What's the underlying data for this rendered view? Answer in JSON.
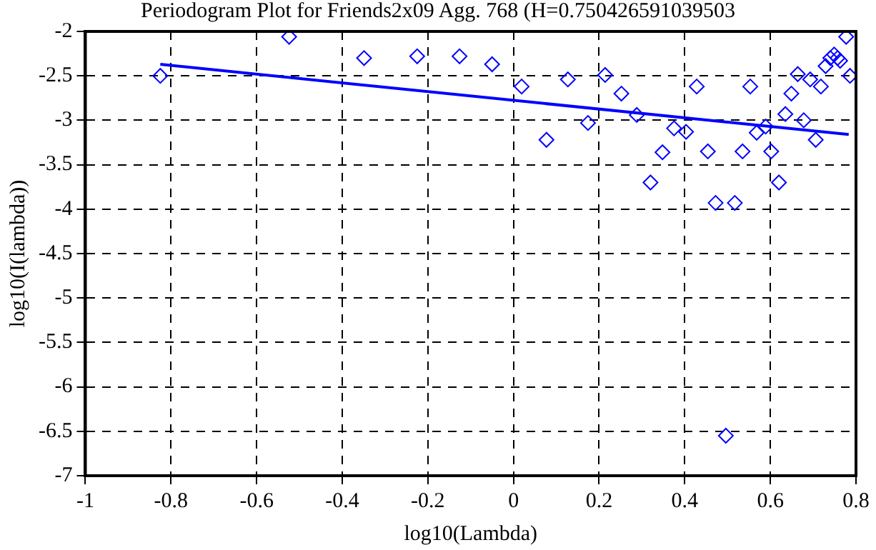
{
  "chart_data": {
    "type": "scatter",
    "title": "Periodogram Plot for Friends2x09 Agg. 768 (H=0.750426591039503",
    "xlabel": "log10(Lambda)",
    "ylabel": "log10(I(lambda))",
    "xlim": [
      -1,
      0.8
    ],
    "xticks": [
      -1,
      -0.8,
      -0.6,
      -0.4,
      -0.2,
      0,
      0.2,
      0.4,
      0.6,
      0.8
    ],
    "ylim": [
      -7,
      -2
    ],
    "yticks": [
      -7,
      -6.5,
      -6,
      -5.5,
      -5,
      -4.5,
      -4,
      -3.5,
      -3,
      -2.5,
      -2
    ],
    "grid": true,
    "legend": false,
    "series": [
      {
        "marker": "diamond",
        "color": "#0000ff",
        "x": [
          -0.825,
          -0.524,
          -0.349,
          -0.225,
          -0.126,
          -0.05,
          0.019,
          0.077,
          0.127,
          0.174,
          0.214,
          0.252,
          0.288,
          0.32,
          0.348,
          0.375,
          0.403,
          0.428,
          0.454,
          0.472,
          0.496,
          0.517,
          0.535,
          0.553,
          0.568,
          0.589,
          0.602,
          0.62,
          0.635,
          0.649,
          0.664,
          0.678,
          0.693,
          0.706,
          0.718,
          0.729,
          0.74,
          0.749,
          0.757,
          0.763,
          0.777,
          0.786
        ],
        "values": [
          -2.5,
          -2.06,
          -2.3,
          -2.28,
          -2.28,
          -2.37,
          -2.62,
          -3.22,
          -2.54,
          -3.03,
          -2.49,
          -2.7,
          -2.94,
          -3.7,
          -3.36,
          -3.09,
          -3.13,
          -2.62,
          -3.35,
          -3.93,
          -6.55,
          -3.93,
          -3.35,
          -2.62,
          -3.14,
          -3.07,
          -3.35,
          -3.7,
          -2.93,
          -2.7,
          -2.48,
          -3,
          -2.54,
          -3.22,
          -2.62,
          -2.39,
          -2.3,
          -2.26,
          -2.3,
          -2.33,
          -2.06,
          -2.5
        ]
      },
      {
        "type": "line",
        "marker": "none",
        "line_style": "solid",
        "color": "#0000ff",
        "x": [
          -0.825,
          0.783
        ],
        "values": [
          -2.37,
          -3.16
        ]
      }
    ]
  }
}
